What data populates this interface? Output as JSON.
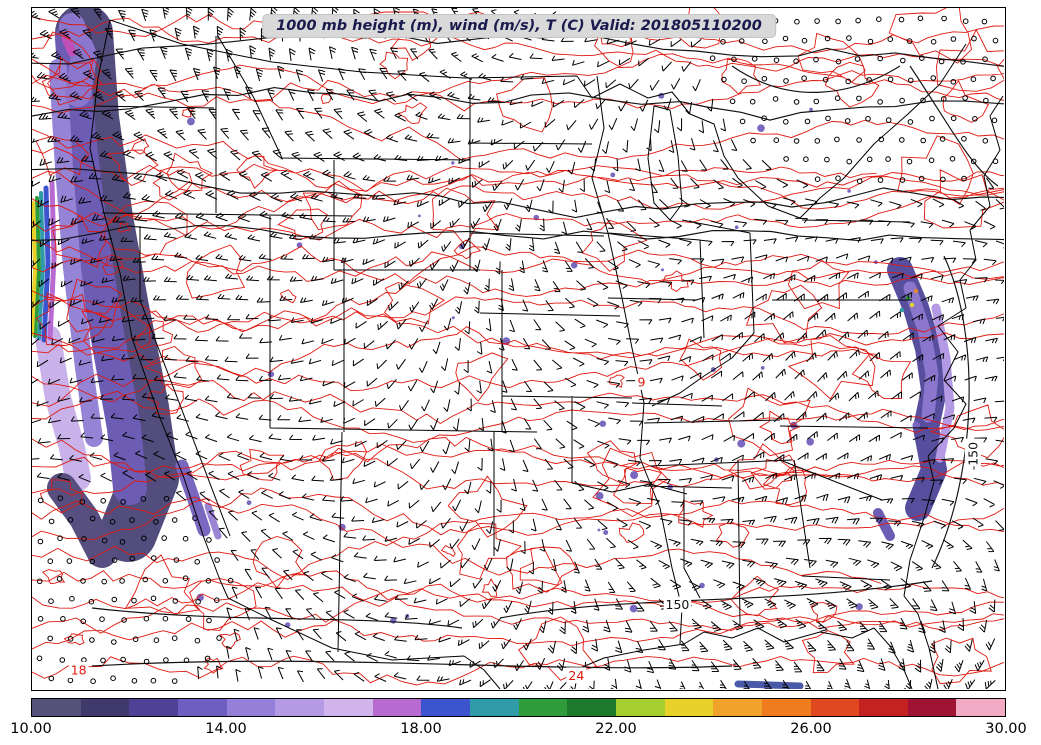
{
  "title": "1000 mb height (m), wind (m/s), T (C) Valid: 201805110200",
  "chart_data": {
    "type": "heatmap",
    "title": "1000 mb height (m), wind (m/s), T (C) Valid: 201805110200",
    "region": "Continental United States",
    "valid_time": "201805110200",
    "fields": [
      {
        "name": "1000 mb geopotential height",
        "units": "m",
        "style": "black contours",
        "labeled_values": [
          -150,
          150
        ]
      },
      {
        "name": "2 m temperature",
        "units": "C",
        "style": "red contours with filled shading below threshold",
        "labeled_values": [
          9,
          18,
          24
        ]
      },
      {
        "name": "wind",
        "units": "m/s",
        "style": "black wind barbs, open circles where calm"
      }
    ],
    "colorbar": {
      "orientation": "horizontal",
      "range": [
        10,
        30
      ],
      "tick_values": [
        10,
        14,
        18,
        22,
        26,
        30
      ],
      "tick_labels": [
        "10.00",
        "14.00",
        "18.00",
        "22.00",
        "26.00",
        "30.00"
      ],
      "band_colors": [
        "#54517b",
        "#3f3a6b",
        "#4f4196",
        "#6f5ec2",
        "#9480d8",
        "#b49ae4",
        "#d2b4ec",
        "#b76bd0",
        "#3c55cf",
        "#2f9ba8",
        "#2f9c3c",
        "#1d7a2c",
        "#a5ce2e",
        "#e8d22a",
        "#f0a22a",
        "#ef7d1f",
        "#e0481f",
        "#c42121",
        "#a01335",
        "#f2a9c4"
      ]
    },
    "contour_colors": {
      "temperature": "#e01810",
      "height": "#111111",
      "boundaries": "#000000"
    },
    "annotations": [
      {
        "text": "18",
        "color": "red",
        "x": 0.048,
        "y": 0.972
      },
      {
        "text": "24",
        "color": "red",
        "x": 0.56,
        "y": 0.98
      },
      {
        "text": "9",
        "color": "red",
        "x": 0.627,
        "y": 0.549
      },
      {
        "text": "150",
        "color": "black",
        "x": 0.664,
        "y": 0.876
      },
      {
        "text": "-150",
        "color": "black",
        "x": 0.968,
        "y": 0.658,
        "rotation": -90
      }
    ]
  }
}
